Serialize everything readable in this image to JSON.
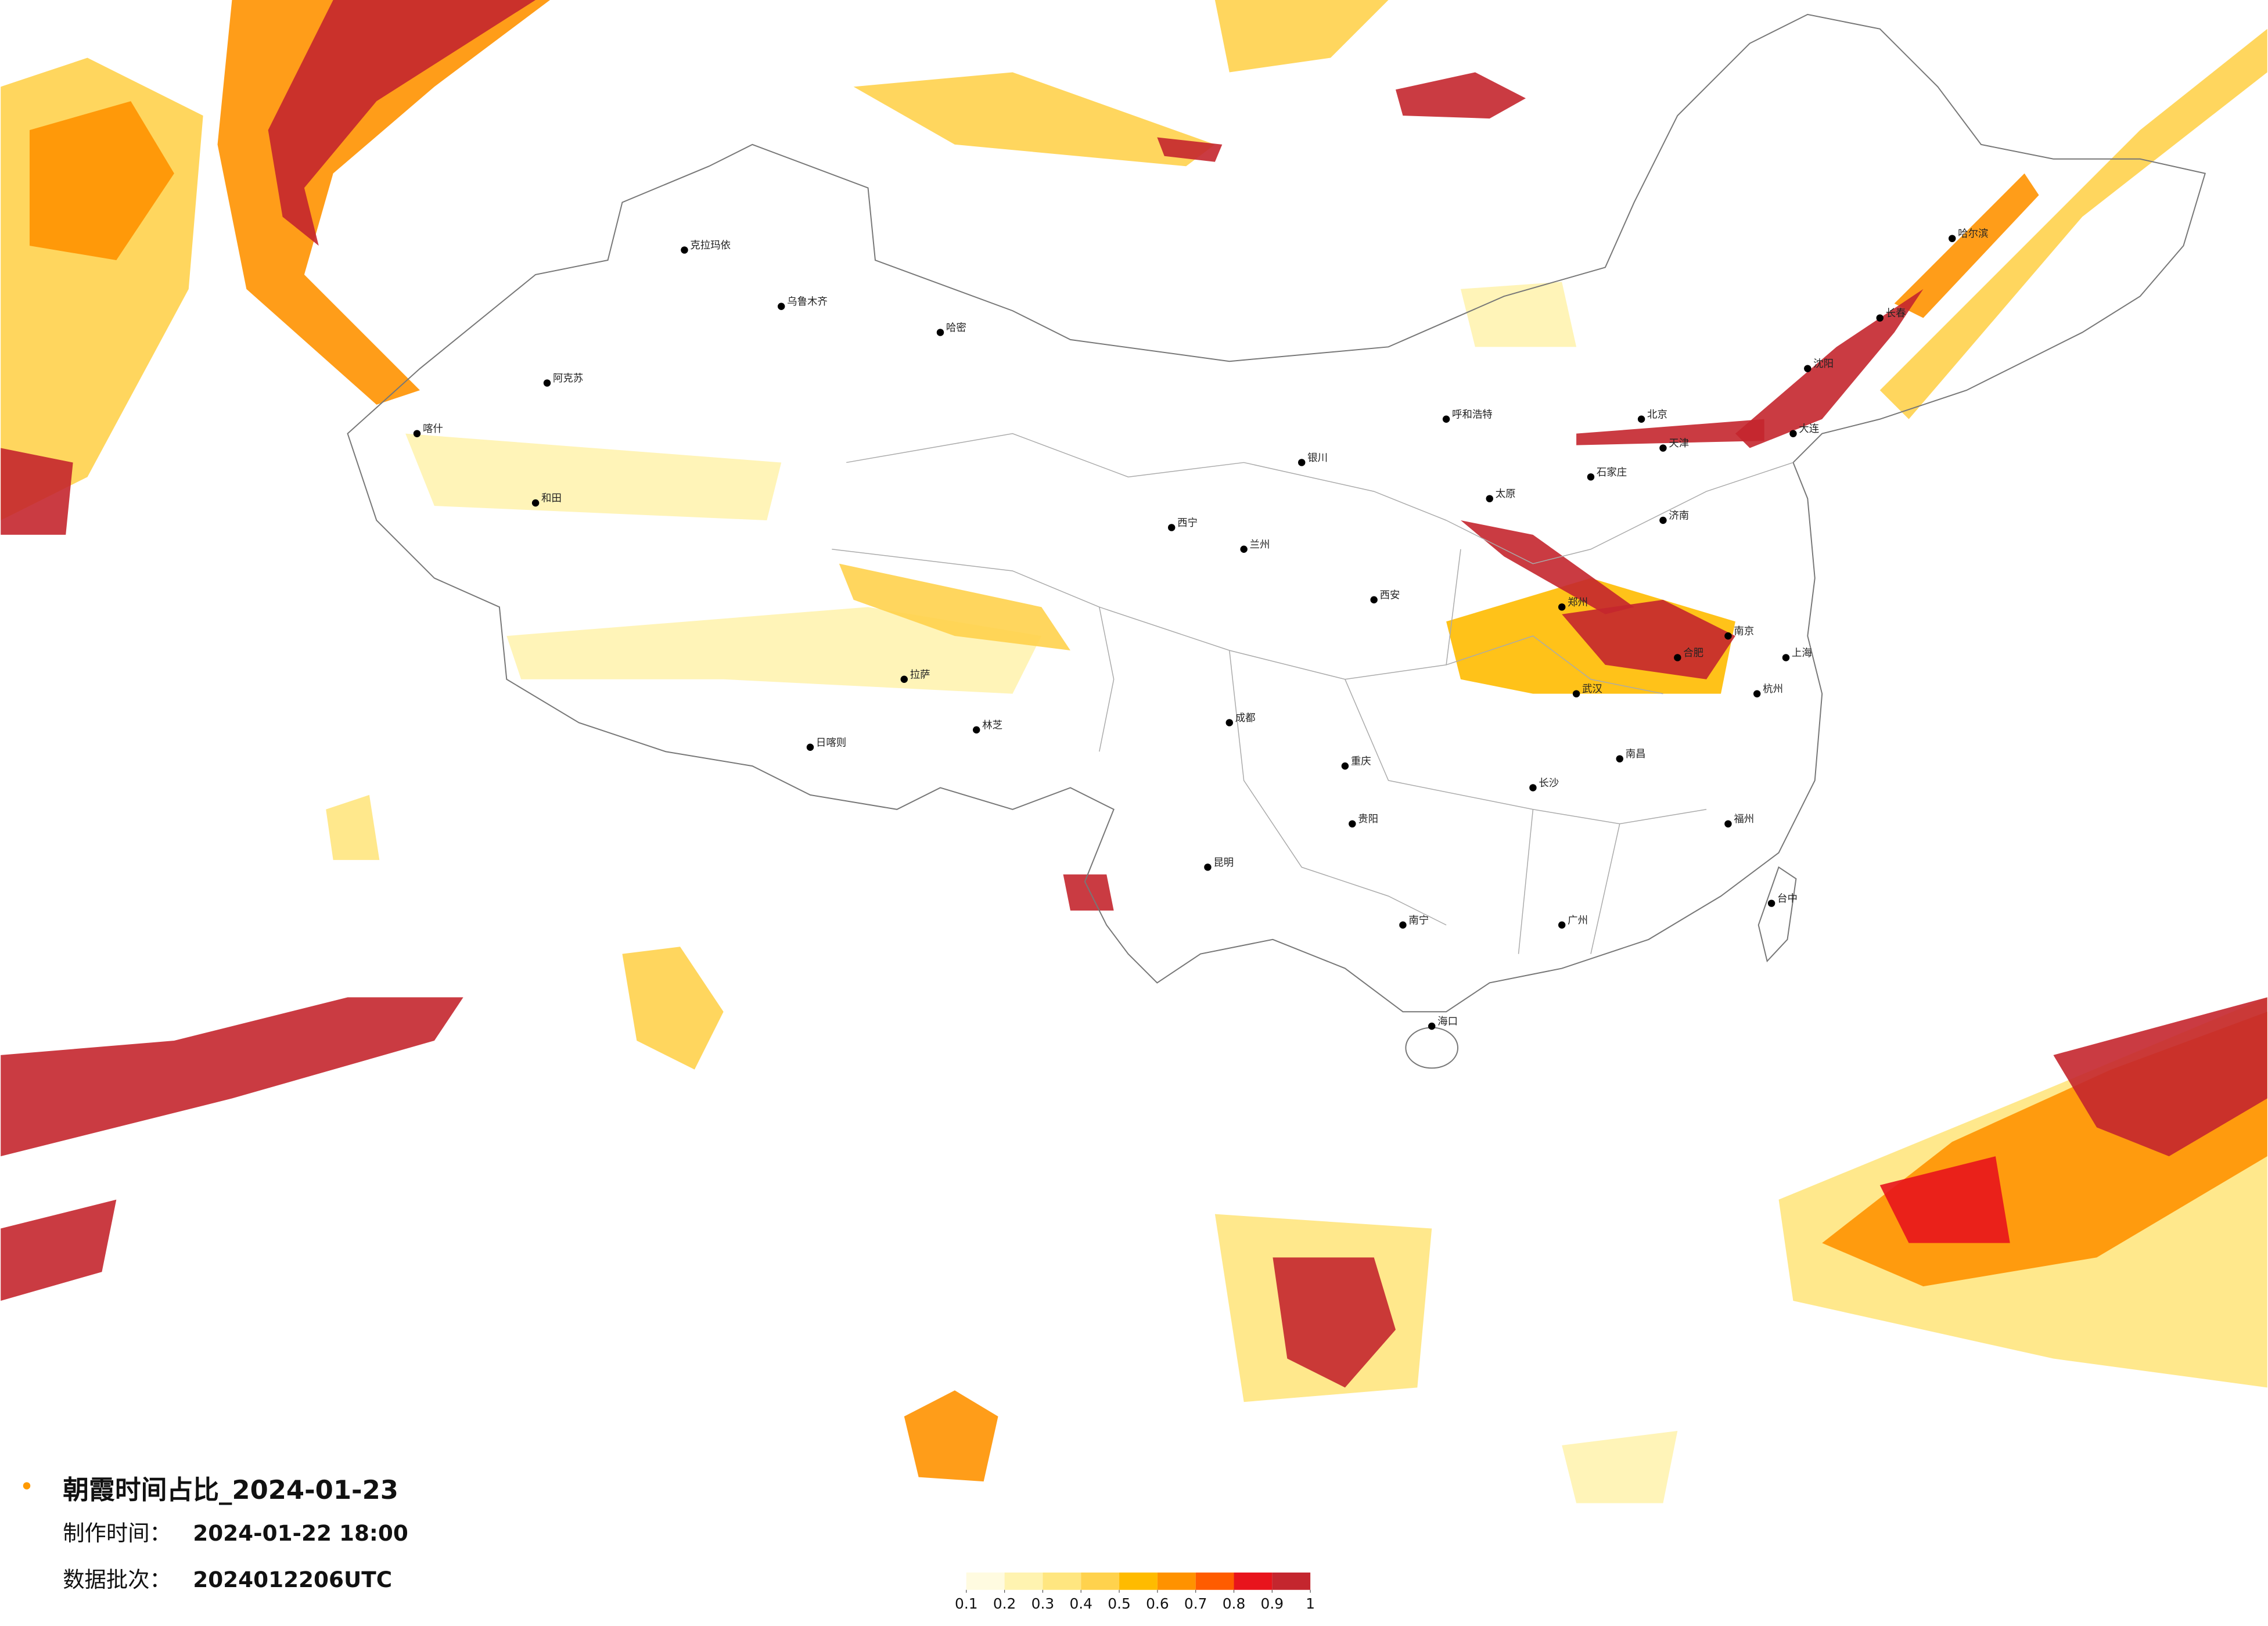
{
  "map": {
    "title": "朝霞时间占比_2024-01-23",
    "production_label": "制作时间：",
    "production_time": "2024-01-22 18:00",
    "batch_label": "数据批次：",
    "batch": "2024012206UTC",
    "legend": {
      "colors": [
        "#fffbe0",
        "#fff3b0",
        "#ffe680",
        "#ffd24d",
        "#ffbb00",
        "#ff9200",
        "#ff5c00",
        "#e8141c",
        "#c4262e"
      ],
      "ticks": [
        0.1,
        0.2,
        0.3,
        0.4,
        0.5,
        0.6,
        0.7,
        0.8,
        0.9,
        1
      ]
    },
    "cities": [
      "克拉玛依",
      "乌鲁木齐",
      "哈密",
      "阿克苏",
      "和田",
      "喀什",
      "拉萨",
      "日喀则",
      "林芝",
      "西宁",
      "兰州",
      "银川",
      "呼和浩特",
      "北京",
      "天津",
      "石家庄",
      "太原",
      "济南",
      "郑州",
      "西安",
      "成都",
      "重庆",
      "昆明",
      "贵阳",
      "南宁",
      "武汉",
      "长沙",
      "南昌",
      "合肥",
      "南京",
      "上海",
      "杭州",
      "福州",
      "广州",
      "海口",
      "台中",
      "沈阳",
      "长春",
      "哈尔滨",
      "大连"
    ]
  }
}
